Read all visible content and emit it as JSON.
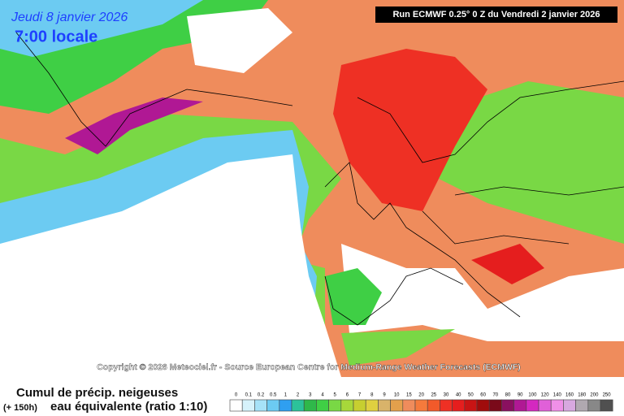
{
  "header": {
    "date": "Jeudi 8 janvier 2026",
    "time": "7:00 locale",
    "run": "Run ECMWF 0.25° 0 Z du Vendredi 2 janvier 2026"
  },
  "copyright": "Copyright © 2026 Meteociel.fr - Source European Centre for Medium-Range Weather Forecasts (ECMWF)",
  "legend": {
    "title": "Cumul de précip. neigeuses",
    "lead": "(+ 150h)",
    "subtitle": "eau équivalente (ratio 1:10)",
    "items": [
      {
        "label": "0",
        "color": "#ffffff"
      },
      {
        "label": "0.1",
        "color": "#d6f2fb"
      },
      {
        "label": "0.2",
        "color": "#a6e2f8"
      },
      {
        "label": "0.5",
        "color": "#6ccbf2"
      },
      {
        "label": "1",
        "color": "#2f9ff0"
      },
      {
        "label": "2",
        "color": "#2cc29a"
      },
      {
        "label": "3",
        "color": "#2fb84a"
      },
      {
        "label": "4",
        "color": "#3fcf45"
      },
      {
        "label": "5",
        "color": "#79d845"
      },
      {
        "label": "6",
        "color": "#a7d83a"
      },
      {
        "label": "7",
        "color": "#c7cf30"
      },
      {
        "label": "8",
        "color": "#e0d040"
      },
      {
        "label": "9",
        "color": "#d9b36a"
      },
      {
        "label": "10",
        "color": "#e3a04c"
      },
      {
        "label": "15",
        "color": "#ef8c5c"
      },
      {
        "label": "20",
        "color": "#f57a3c"
      },
      {
        "label": "25",
        "color": "#f25a2a"
      },
      {
        "label": "30",
        "color": "#ee3024"
      },
      {
        "label": "40",
        "color": "#e51e1e"
      },
      {
        "label": "50",
        "color": "#c81414"
      },
      {
        "label": "60",
        "color": "#a00c0c"
      },
      {
        "label": "70",
        "color": "#7a0a1a"
      },
      {
        "label": "80",
        "color": "#8a1060"
      },
      {
        "label": "90",
        "color": "#b01894"
      },
      {
        "label": "100",
        "color": "#d428c0"
      },
      {
        "label": "120",
        "color": "#e060d8"
      },
      {
        "label": "140",
        "color": "#f090e8"
      },
      {
        "label": "160",
        "color": "#d8a8e0"
      },
      {
        "label": "180",
        "color": "#b0a8b0"
      },
      {
        "label": "200",
        "color": "#888888"
      },
      {
        "label": "250",
        "color": "#505050"
      }
    ]
  }
}
